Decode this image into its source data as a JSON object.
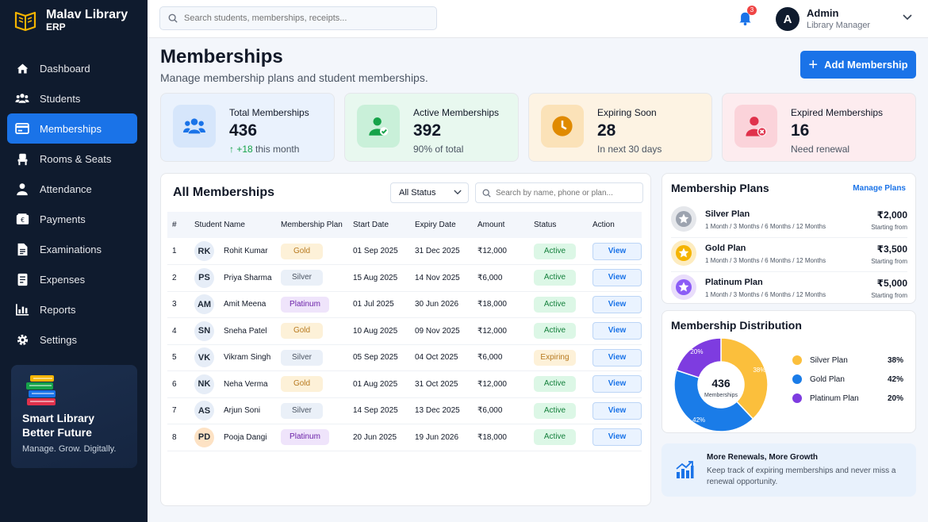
{
  "brand": {
    "name": "Malav Library",
    "sub": "ERP"
  },
  "sidebar": {
    "items": [
      {
        "label": "Dashboard",
        "icon": "home-icon"
      },
      {
        "label": "Students",
        "icon": "users-icon"
      },
      {
        "label": "Memberships",
        "icon": "id-card-icon",
        "active": true
      },
      {
        "label": "Rooms & Seats",
        "icon": "chair-icon"
      },
      {
        "label": "Attendance",
        "icon": "user-icon"
      },
      {
        "label": "Payments",
        "icon": "wallet-icon"
      },
      {
        "label": "Examinations",
        "icon": "document-icon"
      },
      {
        "label": "Expenses",
        "icon": "receipt-icon"
      },
      {
        "label": "Reports",
        "icon": "bar-chart-icon"
      },
      {
        "label": "Settings",
        "icon": "gear-icon"
      }
    ],
    "promo": {
      "title1": "Smart Library",
      "title2": "Better Future",
      "sub": "Manage. Grow. Digitally."
    }
  },
  "topbar": {
    "search_placeholder": "Search students, memberships, receipts...",
    "notification_count": "3",
    "avatar_letter": "A",
    "user_name": "Admin",
    "user_role": "Library Manager"
  },
  "header": {
    "title": "Memberships",
    "subtitle": "Manage membership plans and student memberships.",
    "add_label": "Add Membership"
  },
  "stats": [
    {
      "label": "Total Memberships",
      "value": "436",
      "note_prefix": "↑ +18",
      "note": " this month",
      "bg": "#eaf2fd",
      "icon_bg": "#d6e6fb",
      "color": "#1a73e8"
    },
    {
      "label": "Active Memberships",
      "value": "392",
      "note": "90% of total",
      "bg": "#e8f8ef",
      "icon_bg": "#c9f0d9",
      "color": "#16a34a"
    },
    {
      "label": "Expiring Soon",
      "value": "28",
      "note": "In next 30 days",
      "bg": "#fdf3e3",
      "icon_bg": "#fbe2b8",
      "color": "#e08a00"
    },
    {
      "label": "Expired Memberships",
      "value": "16",
      "note": "Need renewal",
      "bg": "#fdecef",
      "icon_bg": "#fbd3da",
      "color": "#e0314b"
    }
  ],
  "table": {
    "title": "All Memberships",
    "status_filter": "All Status",
    "search_placeholder": "Search by name, phone or plan...",
    "columns": [
      "#",
      "Student Name",
      "Membership Plan",
      "Start Date",
      "Expiry Date",
      "Amount",
      "Status",
      "Action"
    ],
    "rows": [
      {
        "n": "1",
        "initials": "RK",
        "name": "Rohit Kumar",
        "plan": "Gold",
        "start": "01 Sep 2025",
        "expiry": "31 Dec 2025",
        "amount": "₹12,000",
        "status": "Active",
        "action": "View"
      },
      {
        "n": "2",
        "initials": "PS",
        "name": "Priya Sharma",
        "plan": "Silver",
        "start": "15 Aug 2025",
        "expiry": "14 Nov 2025",
        "amount": "₹6,000",
        "status": "Active",
        "action": "View"
      },
      {
        "n": "3",
        "initials": "AM",
        "name": "Amit Meena",
        "plan": "Platinum",
        "start": "01 Jul 2025",
        "expiry": "30 Jun 2026",
        "amount": "₹18,000",
        "status": "Active",
        "action": "View"
      },
      {
        "n": "4",
        "initials": "SN",
        "name": "Sneha Patel",
        "plan": "Gold",
        "start": "10 Aug 2025",
        "expiry": "09 Nov 2025",
        "amount": "₹12,000",
        "status": "Active",
        "action": "View"
      },
      {
        "n": "5",
        "initials": "VK",
        "name": "Vikram Singh",
        "plan": "Silver",
        "start": "05 Sep 2025",
        "expiry": "04 Oct 2025",
        "amount": "₹6,000",
        "status": "Expiring",
        "action": "View"
      },
      {
        "n": "6",
        "initials": "NK",
        "name": "Neha Verma",
        "plan": "Gold",
        "start": "01 Aug 2025",
        "expiry": "31 Oct 2025",
        "amount": "₹12,000",
        "status": "Active",
        "action": "View"
      },
      {
        "n": "7",
        "initials": "AS",
        "name": "Arjun Soni",
        "plan": "Silver",
        "start": "14 Sep 2025",
        "expiry": "13 Dec 2025",
        "amount": "₹6,000",
        "status": "Active",
        "action": "View"
      },
      {
        "n": "8",
        "initials": "PD",
        "name": "Pooja Dangi",
        "plan": "Platinum",
        "start": "20 Jun 2025",
        "expiry": "19 Jun 2026",
        "amount": "₹18,000",
        "status": "Active",
        "action": "View"
      }
    ]
  },
  "plans": {
    "title": "Membership Plans",
    "manage_label": "Manage Plans",
    "items": [
      {
        "name": "Silver Plan",
        "durations": "1 Month / 3 Months / 6 Months / 12 Months",
        "price": "₹2,000",
        "from": "Starting from",
        "color": "#9ca3af",
        "bg": "#e5e7eb"
      },
      {
        "name": "Gold Plan",
        "durations": "1 Month / 3 Months / 6 Months / 12 Months",
        "price": "₹3,500",
        "from": "Starting from",
        "color": "#f5b400",
        "bg": "#fdecc0"
      },
      {
        "name": "Platinum Plan",
        "durations": "1 Month / 3 Months / 6 Months / 12 Months",
        "price": "₹5,000",
        "from": "Starting from",
        "color": "#8b5cf6",
        "bg": "#e9ddfb"
      }
    ]
  },
  "distribution": {
    "title": "Membership Distribution",
    "center_value": "436",
    "center_label": "Memberships",
    "legend": [
      {
        "name": "Silver Plan",
        "pct": "38%",
        "value": 38,
        "color": "#fbbf3c"
      },
      {
        "name": "Gold Plan",
        "pct": "42%",
        "value": 42,
        "color": "#1a7ce8"
      },
      {
        "name": "Platinum Plan",
        "pct": "20%",
        "value": 20,
        "color": "#7e3ce0"
      }
    ]
  },
  "footer": {
    "title": "More Renewals, More Growth",
    "text": "Keep track of expiring memberships and never miss a renewal opportunity."
  }
}
